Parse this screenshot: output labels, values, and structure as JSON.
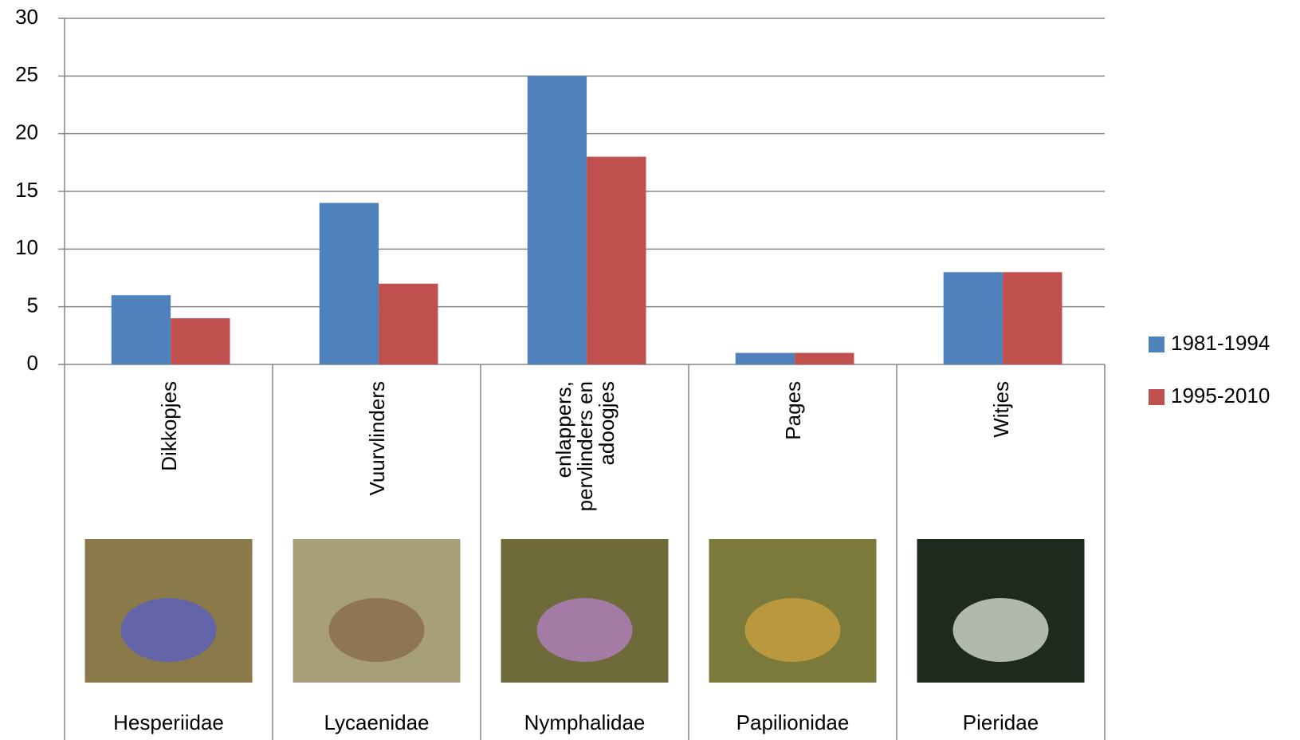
{
  "chart_data": {
    "type": "bar",
    "categories": [
      "Dikkopjes",
      "Vuurvlinders",
      "enlappers, pervlinders en adoogjes",
      "Pages",
      "Witjes"
    ],
    "families": [
      "Hesperiidae",
      "Lycaenidae",
      "Nymphalidae",
      "Papilionidae",
      "Pieridae"
    ],
    "series": [
      {
        "name": "1981-1994",
        "color": "#4f81bd",
        "values": [
          6,
          14,
          25,
          1,
          8
        ]
      },
      {
        "name": "1995-2010",
        "color": "#c0504d",
        "values": [
          4,
          7,
          18,
          1,
          8
        ]
      }
    ],
    "ylim": [
      0,
      30
    ],
    "yticks": [
      0,
      5,
      10,
      15,
      20,
      25,
      30
    ],
    "grid": true,
    "legend": "right"
  }
}
